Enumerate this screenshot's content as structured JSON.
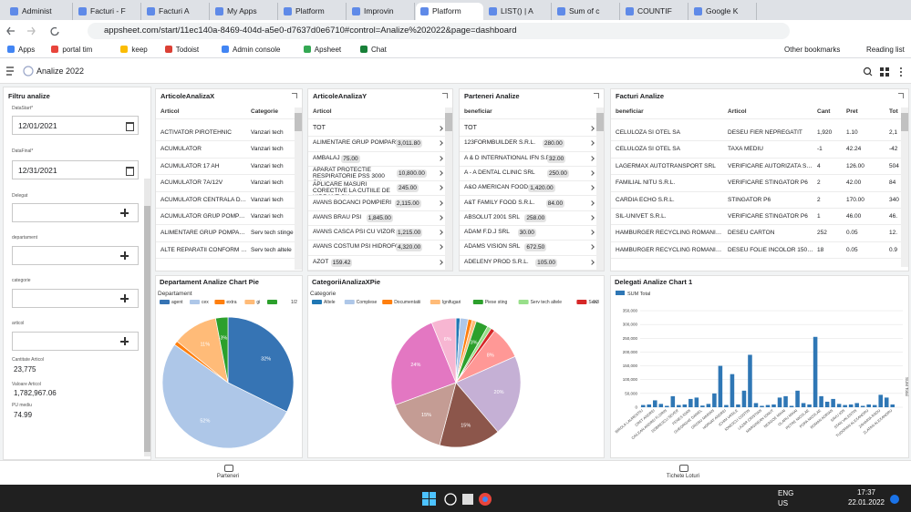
{
  "browser": {
    "tabs": [
      "Administ",
      "Facturi - F",
      "Facturi A",
      "My Apps",
      "Platform",
      "Improvin",
      "Platform",
      "LIST() | A",
      "Sum of c",
      "COUNTIF",
      "Google K"
    ],
    "active_tab": 6,
    "url": "appsheet.com/start/11ec140a-8469-404d-a5e0-d7637d0e6710#control=Analize%202022&page=dashboard",
    "bookmarks": [
      "Apps",
      "portal tim",
      "keep",
      "Todoist",
      "Admin console",
      "Apsheet",
      "Chat"
    ],
    "bookmarks_right": [
      "Other bookmarks",
      "Reading list"
    ]
  },
  "app": {
    "title": "Analize 2022"
  },
  "filter": {
    "title": "Filtru analize",
    "fields": [
      {
        "label": "DataStart*",
        "value": "12/01/2021"
      },
      {
        "label": "DataFinal*",
        "value": "12/31/2021"
      },
      {
        "label": "Delegat"
      },
      {
        "label": "departament"
      },
      {
        "label": "categorie"
      },
      {
        "label": "articol"
      }
    ],
    "stats": [
      {
        "label": "Cantitate Articol",
        "value": "23,775"
      },
      {
        "label": "Valoare Articol",
        "value": "1,782,967.06"
      },
      {
        "label": "PU mediu",
        "value": "74.99"
      }
    ]
  },
  "tables": [
    {
      "title": "ArticoleAnalizaX",
      "columns": [
        "Articol",
        "Categorie"
      ],
      "rows": [
        [
          "ACTIVATOR PIROTEHNIC",
          "Vanzari tech"
        ],
        [
          "ACUMULATOR",
          "Vanzari tech"
        ],
        [
          "ACUMULATOR 17 AH",
          "Vanzari tech"
        ],
        [
          "ACUMULATOR 7A/12V",
          "Vanzari tech"
        ],
        [
          "ACUMULATOR CENTRALA DET...",
          "Vanzari tech"
        ],
        [
          "ACUMULATOR GRUP POMPAR...",
          "Vanzari tech"
        ],
        [
          "ALIMENTARE GRUP POMPARE",
          "Serv tech stinge"
        ],
        [
          "ALTE REPARATII CONFORM DE...",
          "Serv tech altele"
        ]
      ]
    },
    {
      "title": "ArticoleAnalizaY",
      "columns": [
        "Articol"
      ],
      "rows": [
        [
          "TOT"
        ],
        [
          "ALIMENTARE GRUP POMPARE",
          "3,011.80"
        ],
        [
          "AMBALAJ",
          "75.00"
        ],
        [
          "APARAT PROTECTIE RESPIRATORIE PSS 3000 CU...",
          "10,800.00"
        ],
        [
          "APLICARE MASURI CORECTIVE LA CUTIILE DE HIDRANT CU...",
          "245.00"
        ],
        [
          "AVANS BOCANCI POMPIERI",
          "2,115.00"
        ],
        [
          "AVANS BRAU PSI",
          "1,845.00"
        ],
        [
          "AVANS CASCA PSI CU VIZOR",
          "1,215.00"
        ],
        [
          "AVANS COSTUM PSI HIDROFOBIZAT",
          "4,320.00"
        ],
        [
          "AZOT",
          "159.42"
        ]
      ]
    },
    {
      "title": "Parteneri Analize",
      "columns": [
        "beneficiar"
      ],
      "rows": [
        [
          "TOT"
        ],
        [
          "123FORMBUILDER S.R.L.",
          "280.00"
        ],
        [
          "A & D INTERNATIONAL IFN S.R.L.",
          "32.00"
        ],
        [
          "A - A DENTAL CLINIC SRL",
          "250.00"
        ],
        [
          "A&O AMERICAN FOOD",
          "1,420.00"
        ],
        [
          "A&T FAMILY FOOD S.R.L.",
          "84.00"
        ],
        [
          "ABSOLUT 2001 SRL",
          "258.00"
        ],
        [
          "ADAM F.D.J SRL",
          "30.00"
        ],
        [
          "ADAMS VISION SRL",
          "672.50"
        ],
        [
          "ADELENY PROD S.R.L.",
          "105.00"
        ]
      ]
    },
    {
      "title": "Facturi Analize",
      "columns": [
        "beneficiar",
        "Articol",
        "Cant",
        "Pret",
        "Tot"
      ],
      "rows": [
        [
          "CELULOZA SI OTEL SA",
          "DESEU FIER NEPREGATIT",
          "1,920",
          "1.10",
          "2,1"
        ],
        [
          "CELULOZA SI OTEL SA",
          "TAXA MEDIU",
          "-1",
          "42.24",
          "-42"
        ],
        [
          "LAGERMAX AUTOTRANSPORT SRL",
          "VERIFICARE AUTORIZATA SEME...",
          "4",
          "126.00",
          "504"
        ],
        [
          "FAMILIAL NITU S.R.L.",
          "VERIFICARE STINGATOR P6",
          "2",
          "42.00",
          "84"
        ],
        [
          "CARDIA ECHO S.R.L.",
          "STINGATOR P6",
          "2",
          "170.00",
          "340"
        ],
        [
          "SIL-UNIVET S.R.L.",
          "VERIFICARE STINGATOR P6",
          "1",
          "46.00",
          "46."
        ],
        [
          "HAMBURGER RECYCLING ROMANIA SRL",
          "DESEU CARTON",
          "252",
          "0.05",
          "12."
        ],
        [
          "HAMBURGER RECYCLING ROMANIA SRL",
          "DESEU FOLIE INCOLOR 150102",
          "18",
          "0.05",
          "0.9"
        ]
      ]
    }
  ],
  "charts": [
    {
      "type": "pie",
      "title": "Departament Analize Chart Pie",
      "legend_title": "Departament",
      "legend_page": "1/2",
      "categories": [
        "agent",
        "cex",
        "extra",
        "gi",
        null
      ],
      "values": [
        32,
        52,
        1,
        11,
        3
      ],
      "value_labels": [
        "32%",
        "52%",
        null,
        "11%",
        "3%"
      ],
      "colors": [
        "#3674b4",
        "#aec7e8",
        "#ff7f0e",
        "#ffbb78",
        "#2ca02c"
      ]
    },
    {
      "type": "pie",
      "title": "CategoriiAnalizaXPie",
      "legend_title": "Categorie",
      "legend_page": "1/3",
      "categories": [
        "Altele",
        "Complese",
        "Documentatii",
        "Ignifugari",
        "Piese sting",
        "Serv tech altele",
        "Serv",
        null,
        null,
        null,
        null,
        null,
        null
      ],
      "values": [
        1,
        2,
        1,
        1,
        3,
        1,
        1,
        8,
        20,
        15,
        15,
        24,
        6
      ],
      "value_labels": [
        null,
        null,
        null,
        null,
        "3%",
        null,
        null,
        "8%",
        "20%",
        "15%",
        "15%",
        "24%",
        "6%"
      ],
      "colors": [
        "#1f77b4",
        "#aec7e8",
        "#ff7f0e",
        "#ffbb78",
        "#2ca02c",
        "#98df8a",
        "#d62728",
        "#ff9896",
        "#c5b0d5",
        "#8c564b",
        "#c49c94",
        "#e377c2",
        "#f7b6d2"
      ]
    },
    {
      "type": "bar",
      "title": "Delegati Analize Chart 1",
      "series": [
        {
          "name": "SUM Total",
          "color": "#2f77b5",
          "values": [
            8000,
            10000,
            25000,
            12000,
            5000,
            40000,
            8000,
            10000,
            30000,
            35000,
            6000,
            12000,
            50000,
            150000,
            8000,
            120000,
            10000,
            60000,
            190000,
            15000,
            5000,
            8000,
            10000,
            35000,
            40000,
            5000,
            60000,
            15000,
            10000,
            255000,
            40000,
            20000,
            30000,
            12000,
            8000,
            10000,
            15000,
            5000,
            10000,
            8000,
            45000,
            35000,
            10000
          ]
        }
      ],
      "categories": [
        "BIROLA LAURENTIU",
        null,
        "CRET ANDREI",
        null,
        "CAILEAN ANDREI FLORIN",
        null,
        "DOBRESCU SEVER",
        null,
        "FENES IOAN",
        null,
        "GHEORGHE DANIEL",
        null,
        "GROSU MARIAN",
        null,
        "HORVAT ANDREI",
        null,
        "ICHIM VASILE",
        null,
        "IONESCU COSTIN",
        null,
        "LAZAR CRISTIAN",
        null,
        "MARGINEAN IONUT",
        null,
        "NEAGOE MIHAI",
        null,
        "OLARU MIHAI",
        null,
        "PETRE NICOLAE",
        null,
        "POPA NICOLAE",
        null,
        "ROMAN ADRIAN",
        null,
        "SAVU ION",
        null,
        "STAN VALENTIN",
        null,
        "TUDORAN ALEXANDRU",
        null,
        "ZAHARIA RADU",
        null,
        "ZLATAN ALEXANDRU"
      ],
      "y_label": "SUM Total",
      "ylim": [
        0,
        350000
      ],
      "yticks": [
        0,
        {
          "value": 50000,
          "label": "50,000"
        },
        {
          "value": 100000,
          "label": "100,000"
        },
        {
          "value": 150000,
          "label": "150,000"
        },
        {
          "value": 200000,
          "label": "200,000"
        },
        {
          "value": 250000,
          "label": "250,000"
        },
        {
          "value": 300000,
          "label": "300,000"
        },
        {
          "value": 350000,
          "label": "350,000"
        }
      ],
      "grid": true
    }
  ],
  "bottom_nav": [
    "Parteneri",
    "Tichete Loturi"
  ],
  "taskbar": {
    "lang": [
      "ENG",
      "US"
    ],
    "time": "17:37",
    "date": "22.01.2022"
  }
}
